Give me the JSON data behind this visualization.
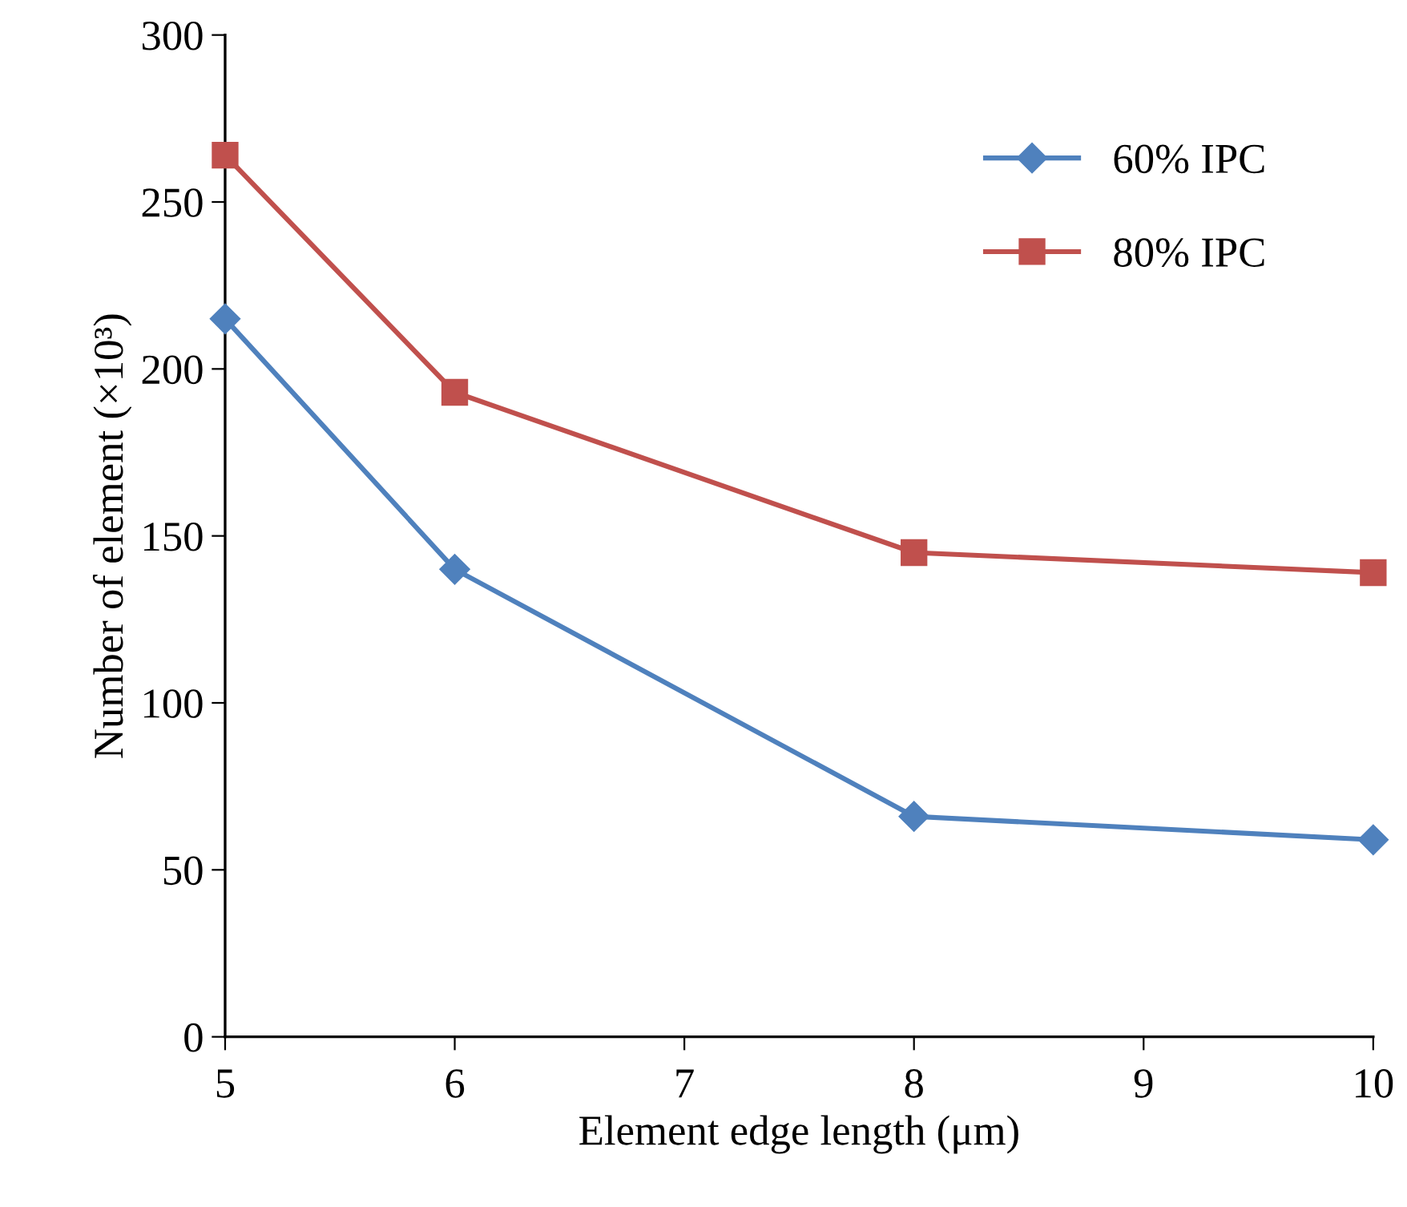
{
  "chart_data": {
    "type": "line",
    "xlabel": "Element edge length (μm)",
    "ylabel": "Number of element (×10³)",
    "x": [
      5,
      6,
      8,
      10
    ],
    "xlim": [
      5,
      10
    ],
    "xticks": [
      5,
      6,
      7,
      8,
      9,
      10
    ],
    "ylim": [
      0,
      300
    ],
    "yticks": [
      0,
      50,
      100,
      150,
      200,
      250,
      300
    ],
    "grid": false,
    "legend": "top right",
    "line_style": "solid",
    "series": [
      {
        "name": "60% IPC",
        "color": "#4f81bd",
        "marker": "diamond",
        "values": [
          215,
          140,
          66,
          59
        ]
      },
      {
        "name": "80% IPC",
        "color": "#c0504d",
        "marker": "square",
        "values": [
          264,
          193,
          145,
          139
        ]
      }
    ]
  }
}
